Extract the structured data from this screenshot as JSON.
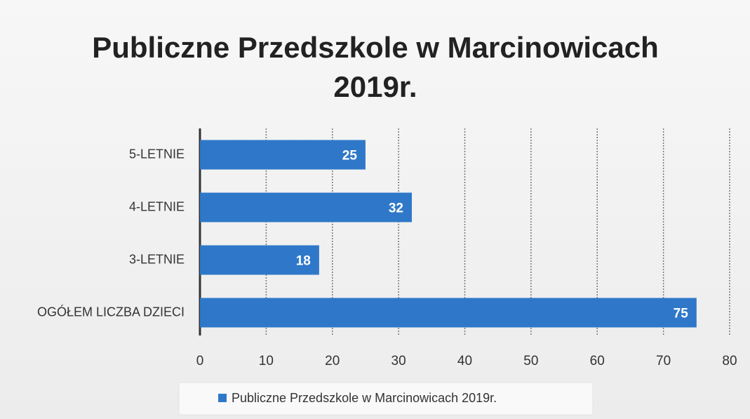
{
  "chart_data": {
    "type": "bar",
    "orientation": "horizontal",
    "title": "Publiczne Przedszkole w Marcinowicach 2019r.",
    "categories": [
      "5-LETNIE",
      "4-LETNIE",
      "3-LETNIE",
      "OGÓŁEM LICZBA DZIECI"
    ],
    "series": [
      {
        "name": "Publiczne Przedszkole w Marcinowicach 2019r.",
        "color": "#2f78c9",
        "values": [
          25,
          32,
          18,
          75
        ]
      }
    ],
    "xlim": [
      0,
      80
    ],
    "xticks": [
      0,
      10,
      20,
      30,
      40,
      50,
      60,
      70,
      80
    ],
    "grid": true,
    "legend": "bottom"
  }
}
